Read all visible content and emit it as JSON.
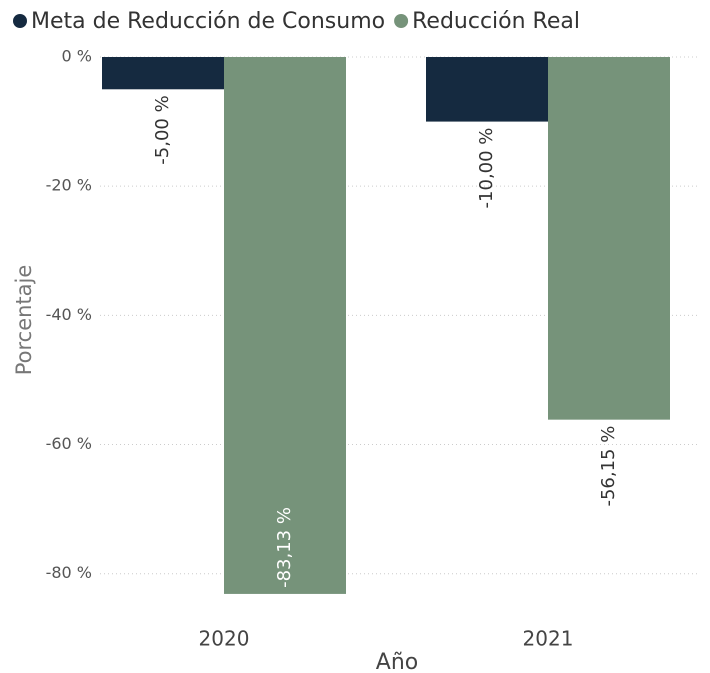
{
  "chart_data": {
    "type": "bar",
    "categories": [
      "2020",
      "2021"
    ],
    "series": [
      {
        "name": "Meta de Reducción de Consumo",
        "color": "#152a40",
        "values": [
          -5,
          -10
        ],
        "value_labels": [
          "-5,00 %",
          "-10,00 %"
        ]
      },
      {
        "name": "Reducción Real",
        "color": "#76937a",
        "values": [
          -83.13,
          -56.15
        ],
        "value_labels": [
          "-83,13 %",
          "-56,15 %"
        ]
      }
    ],
    "x_label": "Año",
    "y_label": "Porcentaje",
    "ylim": [
      -85,
      0
    ],
    "yticks": [
      {
        "value": 0,
        "label": "0 %"
      },
      {
        "value": -20,
        "label": "-20 %"
      },
      {
        "value": -40,
        "label": "-40 %"
      },
      {
        "value": -60,
        "label": "-60 %"
      },
      {
        "value": -80,
        "label": "-80 %"
      }
    ],
    "grid": true,
    "legend": "top"
  }
}
